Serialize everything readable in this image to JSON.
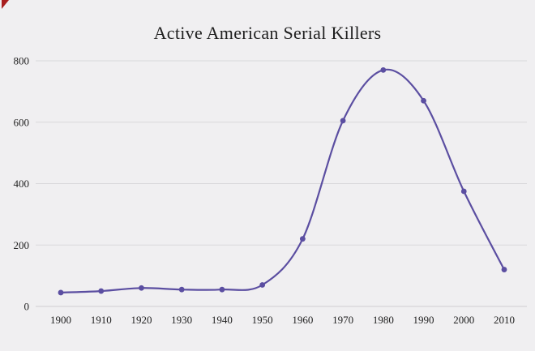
{
  "page": {
    "background": "#f0eff1",
    "corner_mark_color": "#a81e1e"
  },
  "chart_data": {
    "type": "line",
    "title": "Active American Serial Killers",
    "x": [
      1900,
      1910,
      1920,
      1930,
      1940,
      1950,
      1960,
      1970,
      1980,
      1990,
      2000,
      2010
    ],
    "series": [
      {
        "name": "Active American serial killers",
        "values": [
          45,
          50,
          60,
          55,
          55,
          70,
          220,
          605,
          770,
          670,
          375,
          120
        ]
      }
    ],
    "xlabel": "",
    "ylabel": "",
    "ylim": [
      0,
      800
    ],
    "yticks": [
      0,
      200,
      400,
      600,
      800
    ],
    "grid": true,
    "legend": "none",
    "line_color": "#5b4ea1",
    "marker_color": "#5b4ea1",
    "grid_color": "#d9d8db",
    "baseline_color": "#cfced1",
    "text_color": "#222222"
  }
}
